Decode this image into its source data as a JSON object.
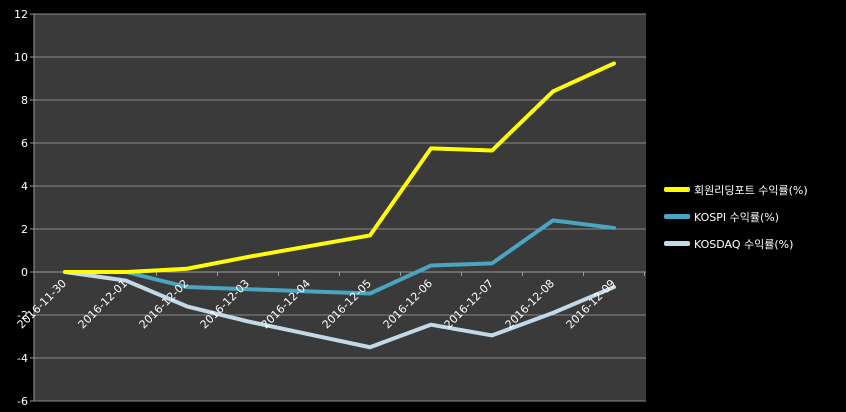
{
  "chart_data": {
    "type": "line",
    "categories": [
      "2016-11-30",
      "2016-12-01",
      "2016-12-02",
      "2016-12-03",
      "2016-12-04",
      "2016-12-05",
      "2016-12-06",
      "2016-12-07",
      "2016-12-08",
      "2016-12-09"
    ],
    "series": [
      {
        "name": "회원리딩포트 수익률(%)",
        "color": "#ffff00",
        "values": [
          0,
          0,
          0.15,
          0.7,
          1.2,
          1.7,
          5.75,
          5.65,
          8.4,
          9.7
        ]
      },
      {
        "name": "KOSPI 수익률(%)",
        "color": "#4aa6c0",
        "values": [
          0,
          0,
          -0.7,
          -0.8,
          -0.9,
          -1.0,
          0.3,
          0.4,
          2.4,
          2.05
        ]
      },
      {
        "name": "KOSDAQ 수익률(%)",
        "color": "#c4d9e8",
        "values": [
          0,
          -0.4,
          -1.6,
          -2.3,
          -2.9,
          -3.5,
          -2.45,
          -2.95,
          -1.9,
          -0.7
        ]
      }
    ],
    "ylim": [
      -6,
      12
    ],
    "yticks": [
      -6,
      -4,
      -2,
      0,
      2,
      4,
      6,
      8,
      10,
      12
    ],
    "grid": true,
    "legend_position": "right",
    "plot_background": "#3a3a3a",
    "page_background": "#000000"
  }
}
